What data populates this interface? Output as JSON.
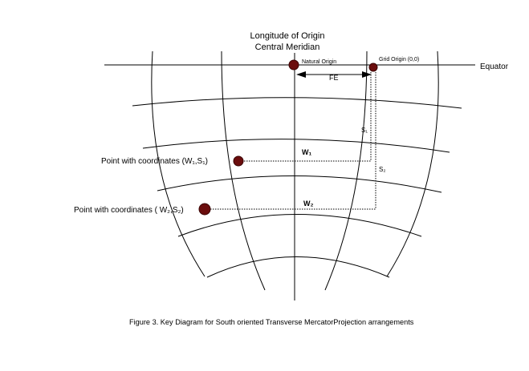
{
  "labels": {
    "title_line1": "Longitude of Origin",
    "title_line2": "Central Meridian",
    "natural_origin": "Natural Origin",
    "grid_origin": "Grid Origin (0,0)",
    "equator": "Equator",
    "fe": "FE",
    "s1": "S₁",
    "s2": "S₂",
    "w1": "W₁",
    "w2": "W₂",
    "point1": "Point with coordinates (W₁,S₁)",
    "point2": "Point with coordinates ( W₂,S₂)",
    "caption": "Figure 3. Key Diagram for South oriented Transverse MercatorProjection arrangements"
  },
  "colors": {
    "point_fill": "#6b0d0d",
    "line": "#000000"
  }
}
